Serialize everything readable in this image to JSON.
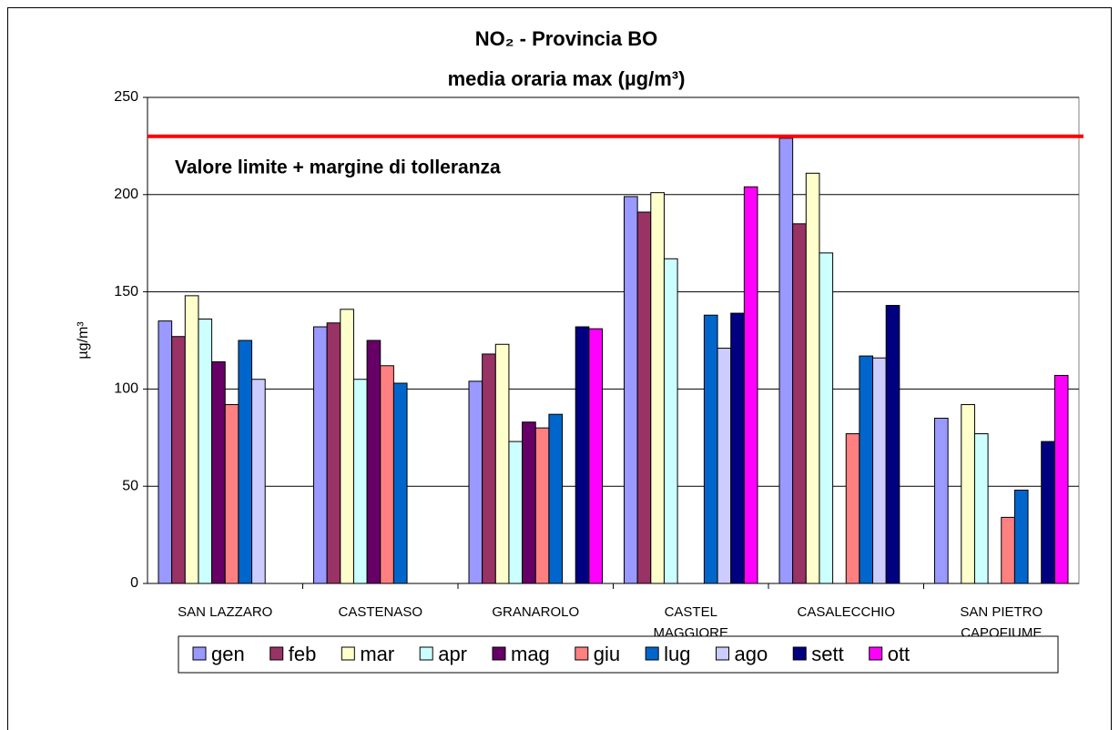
{
  "chart_data": {
    "type": "bar",
    "title": "NO₂ - Provincia BO",
    "subtitle": "media oraria max (µg/m³)",
    "y_label": "µg/m³",
    "annotation": "Valore limite + margine di tolleranza",
    "limit_line": 230,
    "limit_color": "#ff0000",
    "categories": [
      "SAN LAZZARO",
      "CASTENASO",
      "GRANAROLO",
      "CASTEL\nMAGGIORE",
      "CASALECCHIO",
      "SAN PIETRO\nCAPOFIUME"
    ],
    "series": [
      {
        "name": "gen",
        "color": "#9999ff",
        "values": [
          135,
          132,
          104,
          199,
          229,
          85
        ]
      },
      {
        "name": "feb",
        "color": "#993366",
        "values": [
          127,
          134,
          118,
          191,
          185,
          null
        ]
      },
      {
        "name": "mar",
        "color": "#ffffcc",
        "values": [
          148,
          141,
          123,
          201,
          211,
          92
        ]
      },
      {
        "name": "apr",
        "color": "#ccffff",
        "values": [
          136,
          105,
          73,
          167,
          170,
          77
        ]
      },
      {
        "name": "mag",
        "color": "#660066",
        "values": [
          114,
          125,
          83,
          null,
          null,
          null
        ]
      },
      {
        "name": "giu",
        "color": "#ff8080",
        "values": [
          92,
          112,
          80,
          null,
          77,
          34
        ]
      },
      {
        "name": "lug",
        "color": "#0066cc",
        "values": [
          125,
          103,
          87,
          138,
          117,
          48
        ]
      },
      {
        "name": "ago",
        "color": "#ccccff",
        "values": [
          105,
          null,
          null,
          121,
          116,
          null
        ]
      },
      {
        "name": "sett",
        "color": "#000080",
        "values": [
          null,
          null,
          132,
          139,
          143,
          73
        ]
      },
      {
        "name": "ott",
        "color": "#ff00ff",
        "values": [
          null,
          null,
          131,
          204,
          null,
          107
        ]
      }
    ],
    "ylim": [
      0,
      250
    ],
    "yticks": [
      0,
      50,
      100,
      150,
      200,
      250
    ],
    "grid": true,
    "legend": "bottom"
  }
}
